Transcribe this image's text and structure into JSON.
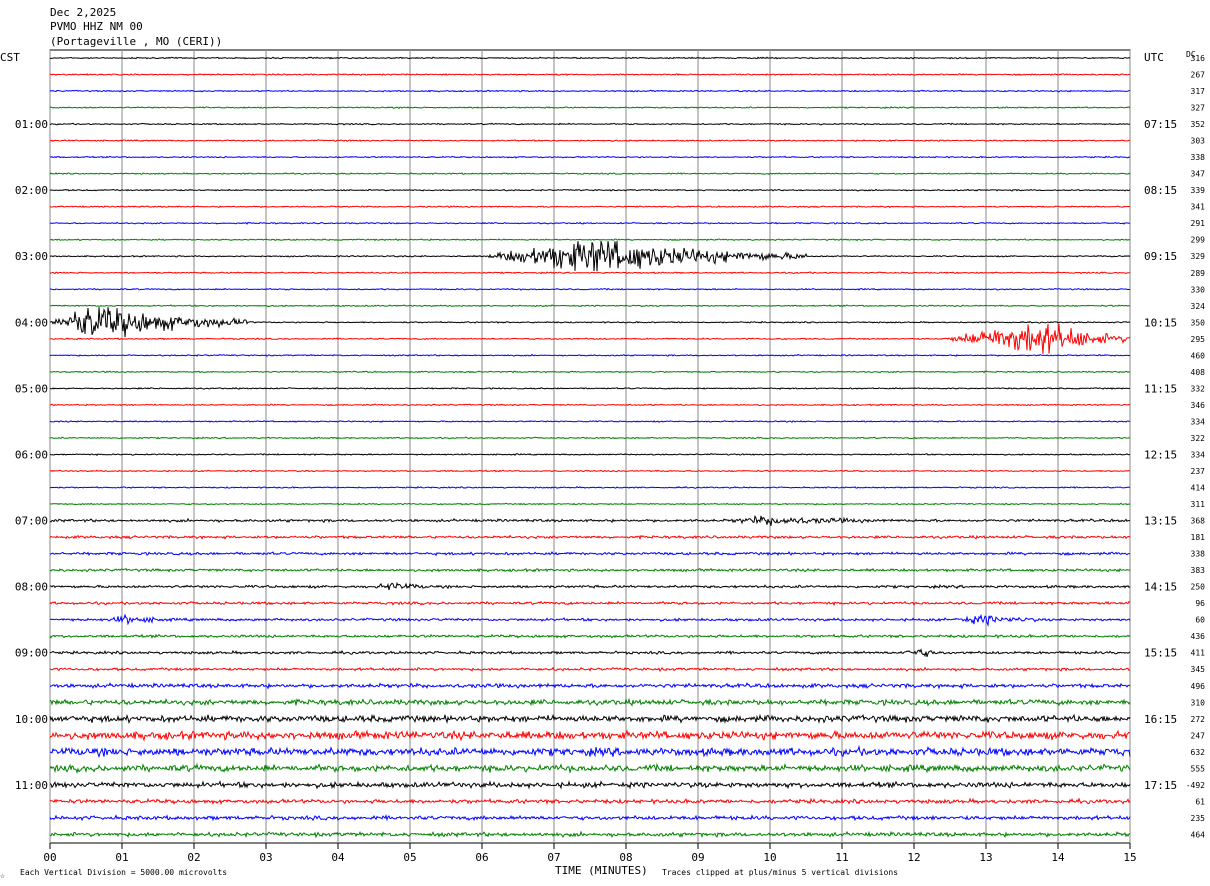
{
  "header": {
    "date": "Dec 2,2025",
    "station": "PVMO HHZ NM 00",
    "location": "(Portageville , MO (CERI))"
  },
  "labels": {
    "left_tz": "CST",
    "right_tz": "UTC",
    "dc": "DC",
    "xlabel": "TIME (MINUTES)",
    "footer_left": "Each Vertical Division = 5000.00 microvolts",
    "footer_right": "Traces clipped at plus/minus 5 vertical divisions",
    "corner_mark": "☆"
  },
  "colors": {
    "cycle": [
      "#000000",
      "#ff0000",
      "#0000ff",
      "#008000"
    ],
    "grid": "#888888"
  },
  "chart_data": {
    "type": "line",
    "title": "PVMO HHZ NM 00",
    "xlabel": "TIME (MINUTES)",
    "xlim": [
      0,
      15
    ],
    "x_ticks": [
      "00",
      "01",
      "02",
      "03",
      "04",
      "05",
      "06",
      "07",
      "08",
      "09",
      "10",
      "11",
      "12",
      "13",
      "14",
      "15"
    ],
    "left_hour_labels": [
      "01:00",
      "02:00",
      "03:00",
      "04:00",
      "05:00",
      "06:00",
      "07:00",
      "08:00",
      "09:00",
      "10:00",
      "11:00"
    ],
    "right_hour_labels": [
      "07:15",
      "08:15",
      "09:15",
      "10:15",
      "11:15",
      "12:15",
      "13:15",
      "14:15",
      "15:15",
      "16:15",
      "17:15"
    ],
    "dc_offsets": [
      316,
      267,
      317,
      327,
      352,
      303,
      338,
      347,
      339,
      341,
      291,
      299,
      329,
      289,
      330,
      324,
      350,
      295,
      460,
      408,
      332,
      346,
      334,
      322,
      334,
      237,
      414,
      311,
      368,
      181,
      338,
      383,
      250,
      96,
      60,
      436,
      411,
      345,
      496,
      310,
      272,
      247,
      632,
      555,
      -492,
      61,
      235,
      464
    ],
    "row_noise_level": [
      1,
      1,
      1,
      1,
      1,
      1,
      1,
      1,
      1,
      1,
      1,
      1,
      1,
      1,
      1,
      1,
      1,
      1,
      1,
      1,
      1,
      1,
      1,
      1,
      1,
      1,
      1,
      1,
      2,
      2,
      2,
      2,
      2,
      2,
      2,
      2,
      2,
      2,
      3,
      4,
      5,
      6,
      6,
      5,
      4,
      3,
      3,
      3
    ],
    "events": [
      {
        "row": 12,
        "start_min": 6.0,
        "end_min": 10.5,
        "peak_min": 7.6,
        "amplitude_divisions": 5
      },
      {
        "row": 16,
        "start_min": 0.0,
        "end_min": 2.8,
        "peak_min": 0.6,
        "amplitude_divisions": 5
      },
      {
        "row": 17,
        "start_min": 12.4,
        "end_min": 15.0,
        "peak_min": 13.8,
        "amplitude_divisions": 5
      },
      {
        "row": 28,
        "start_min": 9.4,
        "end_min": 11.5,
        "peak_min": 10.0,
        "amplitude_divisions": 1
      },
      {
        "row": 32,
        "start_min": 4.5,
        "end_min": 5.2,
        "peak_min": 4.8,
        "amplitude_divisions": 1
      },
      {
        "row": 34,
        "start_min": 0.8,
        "end_min": 1.6,
        "peak_min": 1.1,
        "amplitude_divisions": 1
      },
      {
        "row": 34,
        "start_min": 12.5,
        "end_min": 13.7,
        "peak_min": 13.0,
        "amplitude_divisions": 1
      },
      {
        "row": 36,
        "start_min": 11.8,
        "end_min": 12.4,
        "peak_min": 12.1,
        "amplitude_divisions": 1
      }
    ]
  }
}
